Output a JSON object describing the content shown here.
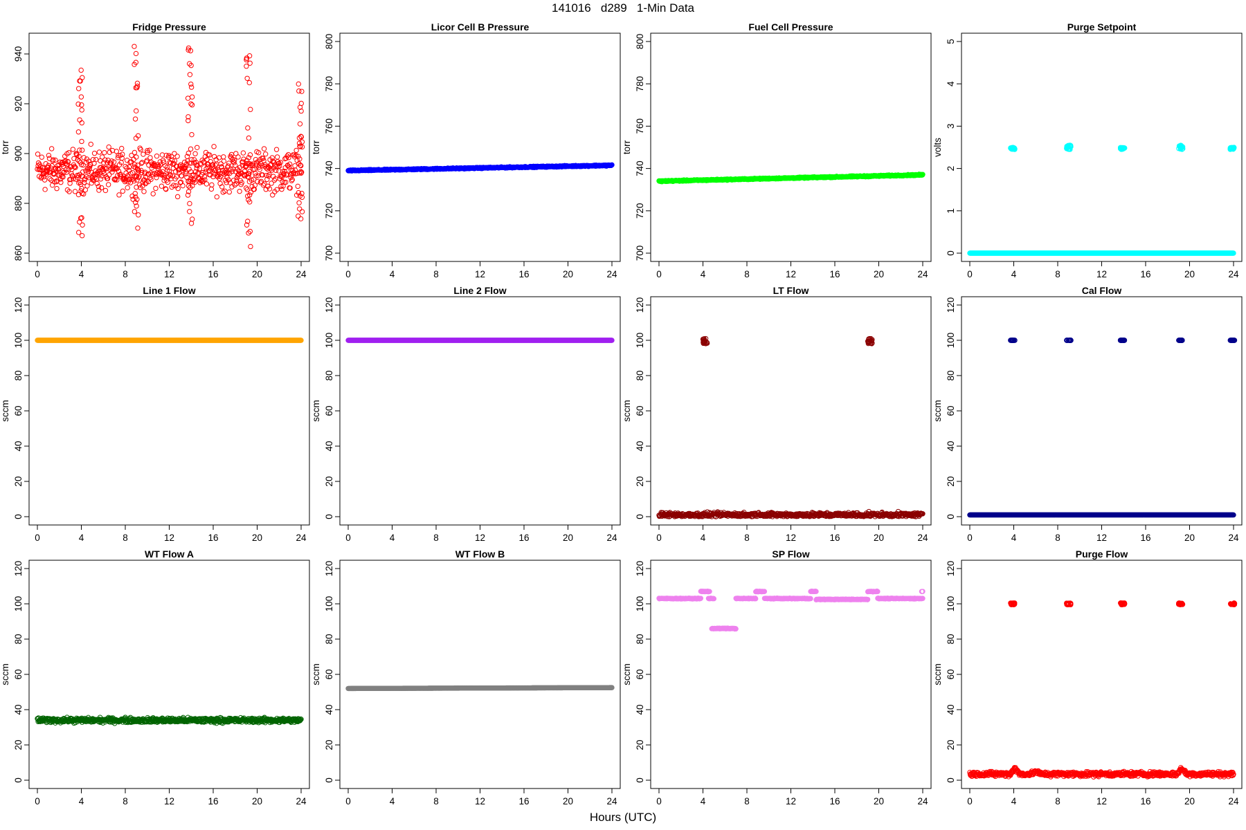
{
  "figure": {
    "title": "141016   d289   1-Min Data",
    "xlabel": "Hours (UTC)"
  },
  "chart_data": [
    {
      "type": "scatter",
      "title": "Fridge Pressure",
      "ylabel": "torr",
      "xlim": [
        0,
        24
      ],
      "ylim": [
        860,
        945
      ],
      "xticks": [
        0,
        4,
        8,
        12,
        16,
        20,
        24
      ],
      "yticks": [
        860,
        880,
        900,
        920,
        940
      ],
      "color": "#ff0000",
      "series": [
        {
          "baseline": 893,
          "noise": 6,
          "drift": 0,
          "spikes": [
            {
              "x": 3.9,
              "ylo": 866,
              "yhi": 937
            },
            {
              "x": 9.0,
              "ylo": 864,
              "yhi": 944
            },
            {
              "x": 13.9,
              "ylo": 867,
              "yhi": 945
            },
            {
              "x": 19.2,
              "ylo": 862,
              "yhi": 941
            },
            {
              "x": 23.9,
              "ylo": 869,
              "yhi": 937
            }
          ]
        }
      ]
    },
    {
      "type": "scatter",
      "title": "Licor Cell B Pressure",
      "ylabel": "torr",
      "xlim": [
        0,
        24
      ],
      "ylim": [
        700,
        800
      ],
      "xticks": [
        0,
        4,
        8,
        12,
        16,
        20,
        24
      ],
      "yticks": [
        700,
        720,
        740,
        760,
        780,
        800
      ],
      "color": "#0000ff",
      "series": [
        {
          "baseline": 739,
          "noise": 0.2,
          "drift": 2.5,
          "spikes": []
        }
      ]
    },
    {
      "type": "scatter",
      "title": "Fuel Cell Pressure",
      "ylabel": "torr",
      "xlim": [
        0,
        24
      ],
      "ylim": [
        700,
        800
      ],
      "xticks": [
        0,
        4,
        8,
        12,
        16,
        20,
        24
      ],
      "yticks": [
        700,
        720,
        740,
        760,
        780,
        800
      ],
      "color": "#00ff00",
      "series": [
        {
          "baseline": 734,
          "noise": 0.2,
          "drift": 3,
          "spikes": []
        }
      ]
    },
    {
      "type": "scatter",
      "title": "Purge Setpoint",
      "ylabel": "volts",
      "xlim": [
        0,
        24
      ],
      "ylim": [
        0,
        5
      ],
      "xticks": [
        0,
        4,
        8,
        12,
        16,
        20,
        24
      ],
      "yticks": [
        0,
        1,
        2,
        3,
        4,
        5
      ],
      "color": "#00ffff",
      "series": [
        {
          "baseline": 0,
          "noise": 0,
          "drift": 0,
          "spikes": [
            {
              "x": 3.9,
              "ylo": 2.45,
              "yhi": 2.5
            },
            {
              "x": 9.0,
              "ylo": 2.45,
              "yhi": 2.55
            },
            {
              "x": 13.9,
              "ylo": 2.45,
              "yhi": 2.5
            },
            {
              "x": 19.2,
              "ylo": 2.45,
              "yhi": 2.55
            },
            {
              "x": 23.9,
              "ylo": 2.45,
              "yhi": 2.5
            }
          ]
        }
      ]
    },
    {
      "type": "scatter",
      "title": "Line 1 Flow",
      "ylabel": "sccm",
      "xlim": [
        0,
        24
      ],
      "ylim": [
        0,
        120
      ],
      "xticks": [
        0,
        4,
        8,
        12,
        16,
        20,
        24
      ],
      "yticks": [
        0,
        20,
        40,
        60,
        80,
        100,
        120
      ],
      "color": "#ffa500",
      "series": [
        {
          "baseline": 100,
          "noise": 0,
          "drift": 0,
          "spikes": []
        }
      ]
    },
    {
      "type": "scatter",
      "title": "Line 2 Flow",
      "ylabel": "sccm",
      "xlim": [
        0,
        24
      ],
      "ylim": [
        0,
        120
      ],
      "xticks": [
        0,
        4,
        8,
        12,
        16,
        20,
        24
      ],
      "yticks": [
        0,
        20,
        40,
        60,
        80,
        100,
        120
      ],
      "color": "#a020f0",
      "series": [
        {
          "baseline": 100,
          "noise": 0,
          "drift": 0,
          "spikes": []
        }
      ]
    },
    {
      "type": "scatter",
      "title": "LT Flow",
      "ylabel": "sccm",
      "xlim": [
        0,
        24
      ],
      "ylim": [
        0,
        120
      ],
      "xticks": [
        0,
        4,
        8,
        12,
        16,
        20,
        24
      ],
      "yticks": [
        0,
        20,
        40,
        60,
        80,
        100,
        120
      ],
      "color": "#8b0000",
      "series": [
        {
          "baseline": 1,
          "noise": 1,
          "drift": 0,
          "spikes": [
            {
              "x": 4.2,
              "ylo": 98,
              "yhi": 101
            },
            {
              "x": 19.2,
              "ylo": 98,
              "yhi": 101
            }
          ]
        }
      ]
    },
    {
      "type": "scatter",
      "title": "Cal Flow",
      "ylabel": "sccm",
      "xlim": [
        0,
        24
      ],
      "ylim": [
        0,
        120
      ],
      "xticks": [
        0,
        4,
        8,
        12,
        16,
        20,
        24
      ],
      "yticks": [
        0,
        20,
        40,
        60,
        80,
        100,
        120
      ],
      "color": "#00008b",
      "series": [
        {
          "baseline": 1,
          "noise": 0,
          "drift": 0,
          "spikes": [
            {
              "x": 3.9,
              "ylo": 100,
              "yhi": 100
            },
            {
              "x": 9.0,
              "ylo": 100,
              "yhi": 100
            },
            {
              "x": 13.9,
              "ylo": 100,
              "yhi": 100
            },
            {
              "x": 19.2,
              "ylo": 100,
              "yhi": 100
            },
            {
              "x": 23.9,
              "ylo": 100,
              "yhi": 100
            }
          ]
        }
      ]
    },
    {
      "type": "scatter",
      "title": "WT Flow A",
      "ylabel": "sccm",
      "xlim": [
        0,
        24
      ],
      "ylim": [
        0,
        120
      ],
      "xticks": [
        0,
        4,
        8,
        12,
        16,
        20,
        24
      ],
      "yticks": [
        0,
        20,
        40,
        60,
        80,
        100,
        120
      ],
      "color": "#006400",
      "series": [
        {
          "baseline": 34,
          "noise": 1,
          "drift": 0,
          "spikes": []
        }
      ]
    },
    {
      "type": "scatter",
      "title": "WT Flow B",
      "ylabel": "sccm",
      "xlim": [
        0,
        24
      ],
      "ylim": [
        0,
        120
      ],
      "xticks": [
        0,
        4,
        8,
        12,
        16,
        20,
        24
      ],
      "yticks": [
        0,
        20,
        40,
        60,
        80,
        100,
        120
      ],
      "color": "#808080",
      "series": [
        {
          "baseline": 52,
          "noise": 0,
          "drift": 0.5,
          "spikes": []
        }
      ]
    },
    {
      "type": "scatter",
      "title": "SP Flow",
      "ylabel": "sccm",
      "xlim": [
        0,
        24
      ],
      "ylim": [
        0,
        120
      ],
      "xticks": [
        0,
        4,
        8,
        12,
        16,
        20,
        24
      ],
      "yticks": [
        0,
        20,
        40,
        60,
        80,
        100,
        120
      ],
      "color": "#ee82ee",
      "segments": [
        {
          "x0": 0,
          "x1": 3.8,
          "y": 103
        },
        {
          "x0": 3.8,
          "x1": 4.6,
          "y": 107
        },
        {
          "x0": 4.5,
          "x1": 5.0,
          "y": 103
        },
        {
          "x0": 4.8,
          "x1": 7.0,
          "y": 86
        },
        {
          "x0": 7.0,
          "x1": 8.8,
          "y": 103
        },
        {
          "x0": 8.8,
          "x1": 9.6,
          "y": 107
        },
        {
          "x0": 9.6,
          "x1": 13.8,
          "y": 103
        },
        {
          "x0": 13.8,
          "x1": 14.3,
          "y": 107
        },
        {
          "x0": 14.3,
          "x1": 19.0,
          "y": 102.5
        },
        {
          "x0": 19.0,
          "x1": 19.9,
          "y": 107
        },
        {
          "x0": 19.9,
          "x1": 24,
          "y": 103
        },
        {
          "x0": 23.9,
          "x1": 24,
          "y": 107
        }
      ]
    },
    {
      "type": "scatter",
      "title": "Purge Flow",
      "ylabel": "sccm",
      "xlim": [
        0,
        24
      ],
      "ylim": [
        0,
        120
      ],
      "xticks": [
        0,
        4,
        8,
        12,
        16,
        20,
        24
      ],
      "yticks": [
        0,
        20,
        40,
        60,
        80,
        100,
        120
      ],
      "color": "#ff0000",
      "series": [
        {
          "baseline": 3.5,
          "noise": 1,
          "drift": 0,
          "bumps": [
            {
              "x": 4.1,
              "y": 7
            },
            {
              "x": 6,
              "y": 5
            },
            {
              "x": 19.3,
              "y": 7
            }
          ],
          "spikes": [
            {
              "x": 3.9,
              "ylo": 99.5,
              "yhi": 100.5
            },
            {
              "x": 9.0,
              "ylo": 99.5,
              "yhi": 100.5
            },
            {
              "x": 13.9,
              "ylo": 99.5,
              "yhi": 100.5
            },
            {
              "x": 19.2,
              "ylo": 99.5,
              "yhi": 100.5
            },
            {
              "x": 23.9,
              "ylo": 99.5,
              "yhi": 100.5
            }
          ]
        }
      ]
    }
  ]
}
